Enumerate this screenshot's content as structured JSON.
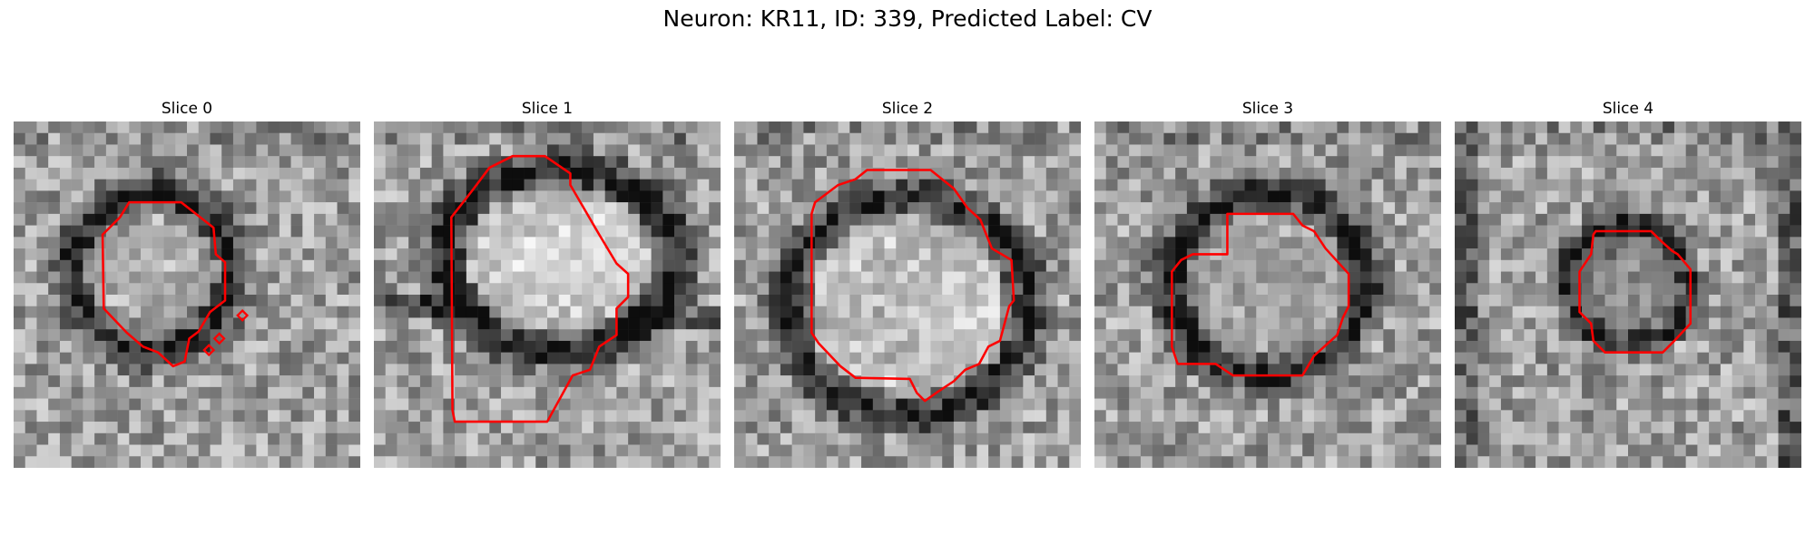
{
  "figure": {
    "title": "Neuron: KR11, ID: 339, Predicted Label: CV"
  },
  "slices": [
    {
      "label": "Slice 0"
    },
    {
      "label": "Slice 1"
    },
    {
      "label": "Slice 2"
    },
    {
      "label": "Slice 3"
    },
    {
      "label": "Slice 4"
    }
  ],
  "colors": {
    "contour": "#ff0000",
    "background": "#ffffff"
  }
}
